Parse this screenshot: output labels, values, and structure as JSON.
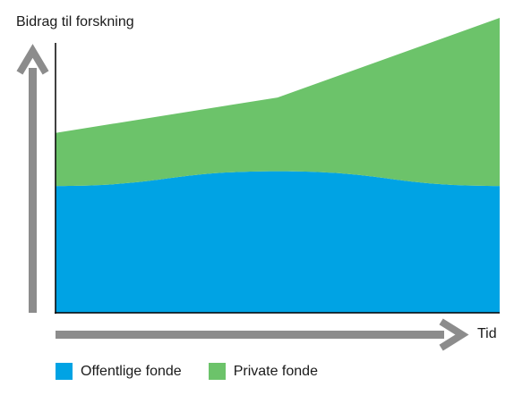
{
  "chart_data": {
    "type": "area",
    "stacked": true,
    "title": "",
    "ylabel": "Bidrag til forskning",
    "xlabel": "Tid",
    "x": [
      0,
      1,
      2
    ],
    "ylim": [
      0,
      100
    ],
    "axis_ticks": false,
    "grid": false,
    "legend": "bottom-left",
    "series": [
      {
        "name": "Offentlige fonde",
        "color": "#00a3e4",
        "values": [
          43,
          48,
          43
        ]
      },
      {
        "name": "Private fonde",
        "color": "#6cc36a",
        "values": [
          18,
          25,
          57
        ]
      }
    ]
  },
  "colors": {
    "axis_arrow": "#8c8c8c",
    "axis_line": "#000000"
  }
}
